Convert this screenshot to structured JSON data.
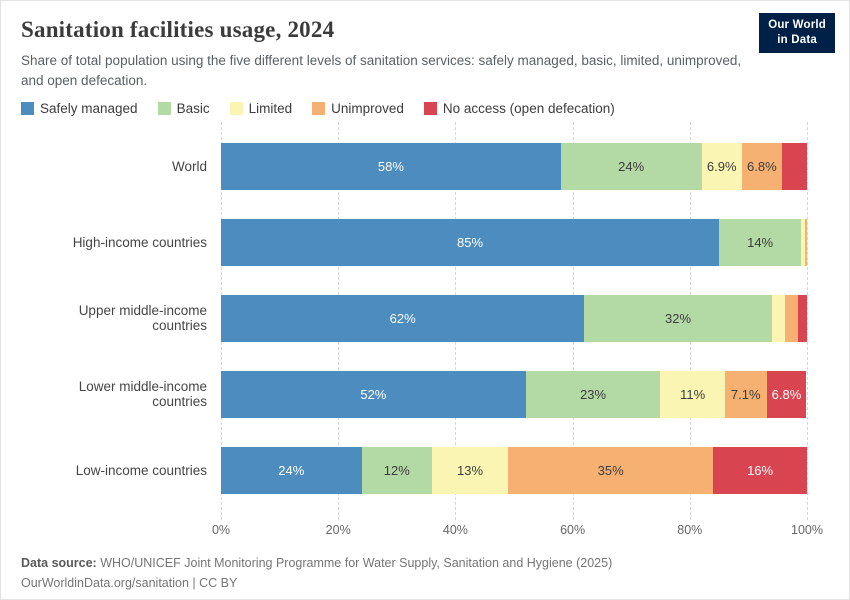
{
  "header": {
    "title": "Sanitation facilities usage, 2024",
    "subtitle": "Share of total population using the five different levels of sanitation services: safely managed, basic, limited, unimproved, and open defecation.",
    "logo_line1": "Our World",
    "logo_line2": "in Data",
    "logo_bg": "#002147"
  },
  "chart_data": {
    "type": "bar",
    "orientation": "horizontal",
    "stacked": true,
    "unit": "%",
    "xlim": [
      0,
      100
    ],
    "grid": "dashed-vertical",
    "legend_position": "top",
    "categories": [
      "World",
      "High-income countries",
      "Upper middle-income countries",
      "Lower middle-income countries",
      "Low-income countries"
    ],
    "series": [
      {
        "name": "Safely managed",
        "color": "#4c8cbf",
        "label_color": "#ffffff",
        "values": [
          58,
          85,
          62,
          52,
          24
        ],
        "labels": [
          "58%",
          "85%",
          "62%",
          "52%",
          "24%"
        ]
      },
      {
        "name": "Basic",
        "color": "#b3d9a4",
        "label_color": "#3d3d3d",
        "values": [
          24,
          14,
          32,
          23,
          12
        ],
        "labels": [
          "24%",
          "14%",
          "32%",
          "23%",
          "12%"
        ]
      },
      {
        "name": "Limited",
        "color": "#fbf5b3",
        "label_color": "#3d3d3d",
        "values": [
          6.9,
          0.6,
          2.3,
          11,
          13
        ],
        "labels": [
          "6.9%",
          "",
          "",
          "11%",
          "13%"
        ]
      },
      {
        "name": "Unimproved",
        "color": "#f6b072",
        "label_color": "#3d3d3d",
        "values": [
          6.8,
          0.4,
          2.2,
          7.1,
          35
        ],
        "labels": [
          "6.8%",
          "",
          "",
          "7.1%",
          "35%"
        ]
      },
      {
        "name": "No access (open defecation)",
        "color": "#d8444f",
        "label_color": "#ffffff",
        "values": [
          4.3,
          0,
          1.5,
          6.8,
          16
        ],
        "labels": [
          "",
          "",
          "",
          "6.8%",
          "16%"
        ]
      }
    ],
    "xticks": [
      {
        "value": 0,
        "label": "0%"
      },
      {
        "value": 20,
        "label": "20%"
      },
      {
        "value": 40,
        "label": "40%"
      },
      {
        "value": 60,
        "label": "60%"
      },
      {
        "value": 80,
        "label": "80%"
      },
      {
        "value": 100,
        "label": "100%"
      }
    ]
  },
  "footer": {
    "source_label": "Data source:",
    "source_text": "WHO/UNICEF Joint Monitoring Programme for Water Supply, Sanitation and Hygiene (2025)",
    "link_text": "OurWorldinData.org/sanitation | CC BY"
  }
}
